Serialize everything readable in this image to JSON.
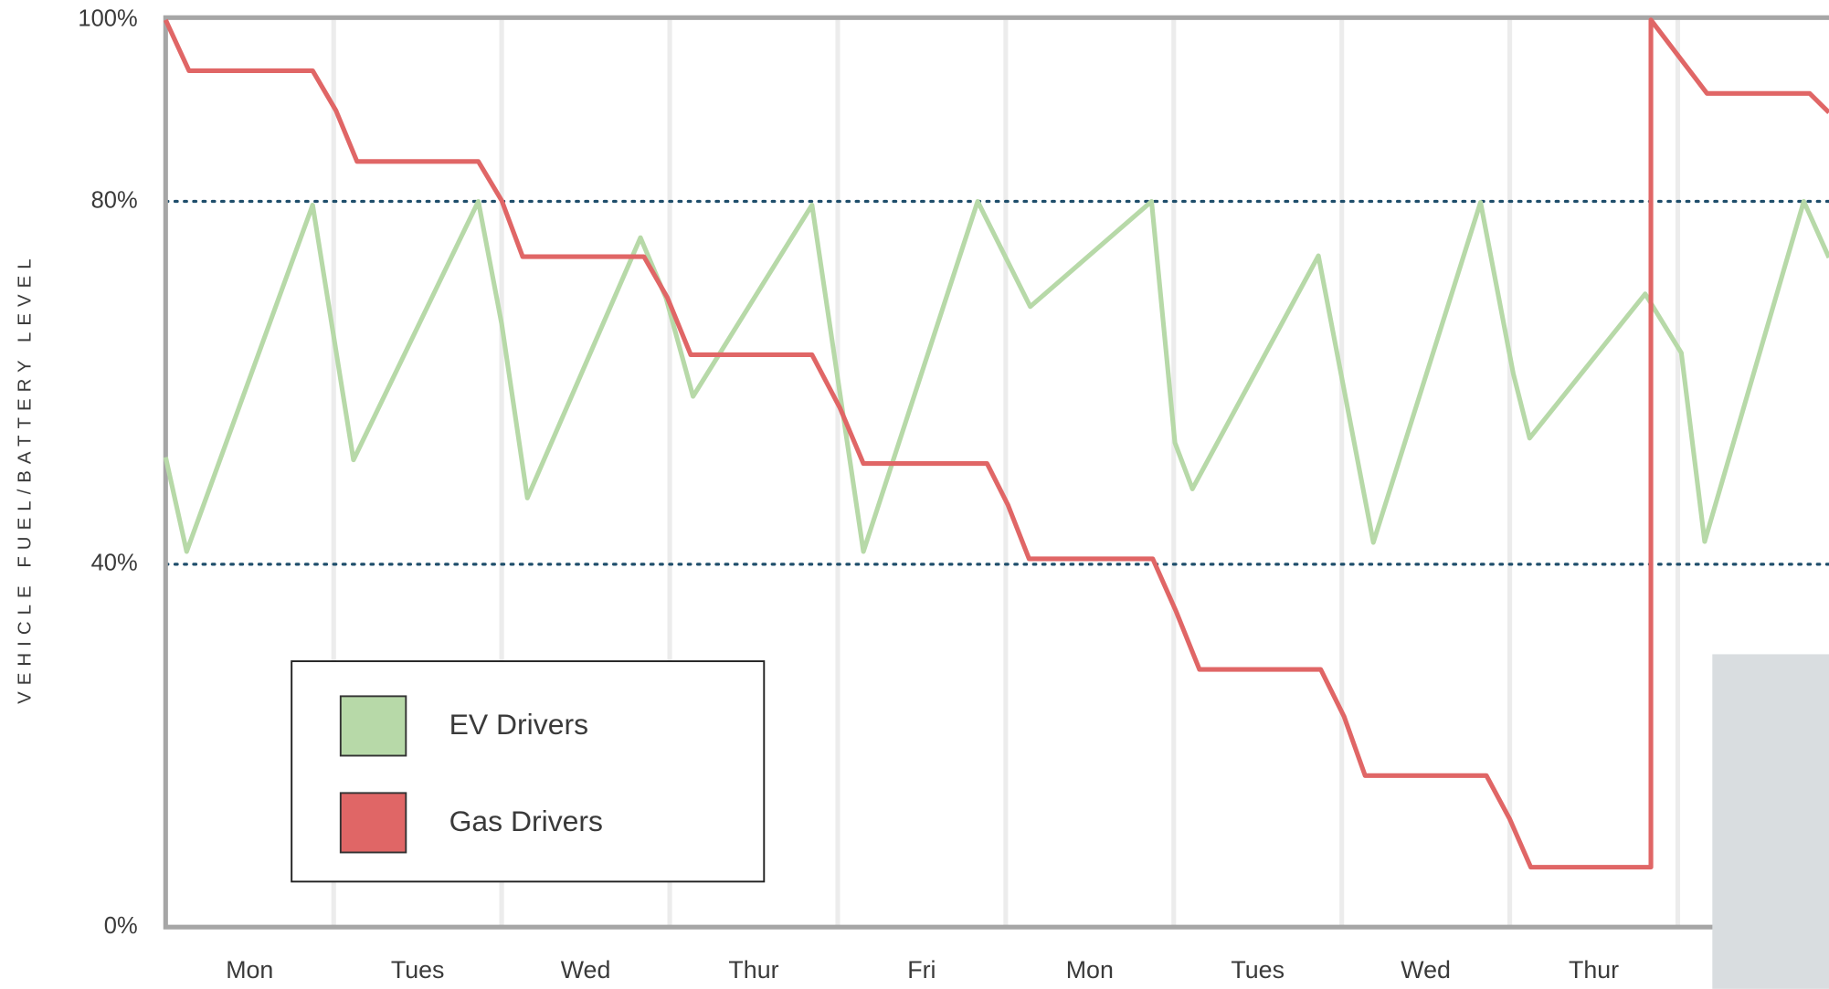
{
  "chart_data": {
    "type": "line",
    "y_label": "VEHICLE FUEL/BATTERY LEVEL",
    "categories": [
      "Mon",
      "Tues",
      "Wed",
      "Thur",
      "Fri",
      "Mon",
      "Tues",
      "Wed",
      "Thur"
    ],
    "xlim": [
      0,
      9.9
    ],
    "xticks": [
      1,
      2,
      3,
      4,
      5,
      6,
      7,
      8,
      9
    ],
    "ylim": [
      0,
      100
    ],
    "yticks": [
      {
        "value": 0,
        "label": "0%"
      },
      {
        "value": 40,
        "label": "40%"
      },
      {
        "value": 80,
        "label": "80%"
      },
      {
        "value": 100,
        "label": "100%"
      }
    ],
    "grid": true,
    "legend": "lower left",
    "series": [
      {
        "name": "EV Drivers",
        "color": "#b7d9a8",
        "x": [
          0,
          0.125,
          0.875,
          1.118,
          1.861,
          2.0,
          2.153,
          2.826,
          2.979,
          3.139,
          3.847,
          4.153,
          4.833,
          5.146,
          5.868,
          6.007,
          6.111,
          6.861,
          7.188,
          7.826,
          8.021,
          8.118,
          8.806,
          9.021,
          9.16,
          9.75,
          9.9
        ],
        "values": [
          51.8,
          41.4,
          79.6,
          51.5,
          80,
          66.5,
          47.3,
          76,
          69.3,
          58.5,
          79.6,
          41.4,
          80,
          68.4,
          80,
          53.4,
          48.3,
          74,
          42.4,
          79.9,
          61,
          53.9,
          69.8,
          63.3,
          42.5,
          80,
          73.8
        ]
      },
      {
        "name": "Gas Drivers",
        "color": "#e06666",
        "x": [
          0,
          0.139,
          0.875,
          1.014,
          1.139,
          1.861,
          2.0,
          2.125,
          2.847,
          2.986,
          3.125,
          3.847,
          4.014,
          4.153,
          4.889,
          5.014,
          5.139,
          5.875,
          6.014,
          6.153,
          6.875,
          7.014,
          7.139,
          7.861,
          8.0,
          8.125,
          8.84,
          8.84,
          9.174,
          9.785,
          9.9
        ],
        "values": [
          100,
          94.4,
          94.4,
          90,
          84.4,
          84.4,
          80.1,
          73.9,
          73.9,
          69.4,
          63.1,
          63.1,
          57.2,
          51.1,
          51.1,
          46.5,
          40.6,
          40.6,
          34.8,
          28.4,
          28.4,
          23.2,
          16.7,
          16.7,
          11.9,
          6.6,
          6.6,
          100,
          91.9,
          91.9,
          89.8
        ]
      }
    ]
  }
}
